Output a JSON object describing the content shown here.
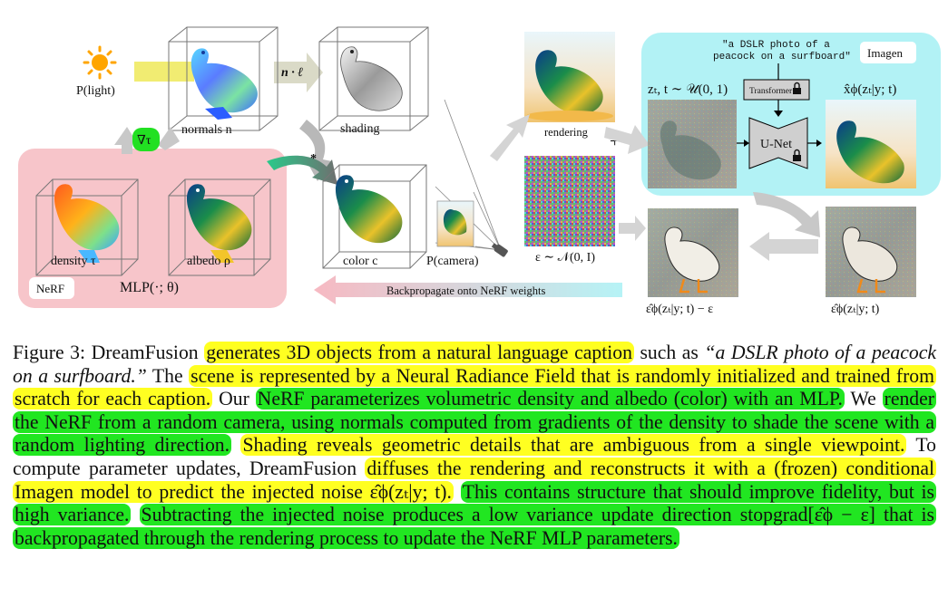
{
  "figure": {
    "light_label": "P(light)",
    "normals_label": "normals n",
    "n_dot_l": "n · ℓ",
    "shading_label": "shading",
    "grad_tau": "∇τ",
    "density_label": "density τ",
    "albedo_label": "albedo ρ",
    "nerf_tag": "NeRF",
    "mlp_label": "MLP(·; θ)",
    "color_label": "color c",
    "camera_label": "P(camera)",
    "rendering_label": "rendering",
    "noise_label": "ε ∼ 𝒩(0, I)",
    "zt_label": "zₜ, t ∼ 𝒰(0, 1)",
    "prompt_line1": "\"a DSLR photo of a",
    "prompt_line2": "peacock on a surfboard\"",
    "imagen_tag": "Imagen",
    "transformer_label": "Transformer",
    "unet_label": "U-Net",
    "xhat_label": "x̂ϕ(zₜ|y; t)",
    "backprop_label": "Backpropagate onto NeRF weights",
    "eps_minus_label": "ε̂ϕ(zₜ|y; t) − ε",
    "eps_hat_label": "ε̂ϕ(zₜ|y; t)",
    "colors": {
      "nerf_bg": "#f7c5ca",
      "imagen_bg": "#b2f2f5",
      "light_beam": "#f1ec72",
      "arrow_gray": "#c8c8c8",
      "grad_green": "#22e022"
    }
  },
  "caption": {
    "p1": "Figure 3: DreamFusion ",
    "h1": "generates 3D objects from a natural language caption",
    "p2": " such as ",
    "q1": "“a DSLR photo of a peacock on a surfboard.”",
    "p3": " The ",
    "h2": "scene is represented by a Neural Radiance Field that is randomly initialized and trained from scratch for each caption.",
    "p4": " Our ",
    "h3": "NeRF parameterizes volumetric density and albedo (color) with an MLP.",
    "p5": " We ",
    "h4": "render the NeRF from a random camera, using normals computed from gradients of the density to shade the scene with a random lighting direction.",
    "p6": " ",
    "h5": "Shading reveals geometric details that are ambiguous from a single viewpoint.",
    "p7": " To compute parameter updates, DreamFusion ",
    "h6": "diffuses the rendering and reconstructs it with a (frozen) conditional Imagen model to predict the injected noise ε̂ϕ(zₜ|y; t).",
    "p8": " ",
    "h7": "This contains structure that should improve fidelity, but is high variance.",
    "p9": " ",
    "h8": "Subtracting the injected noise produces a low variance update direction stopgrad[ε̂ϕ − ε] that is backpropagated through the rendering process to update the NeRF MLP parameters."
  }
}
